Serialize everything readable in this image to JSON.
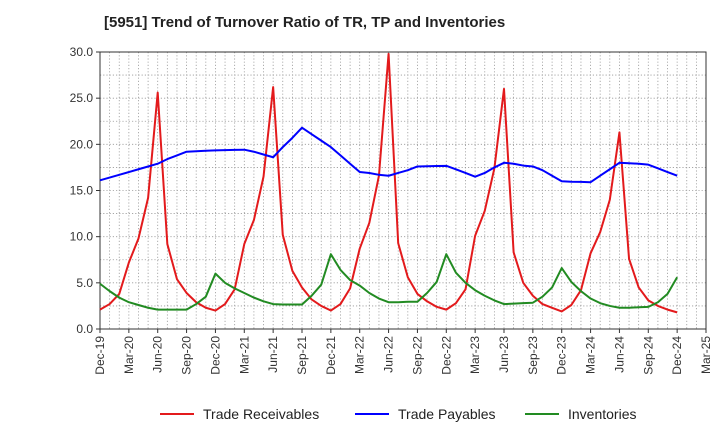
{
  "chart_data": {
    "type": "line",
    "title": "[5951]  Trend of Turnover Ratio of TR, TP and Inventories",
    "xlabel": "",
    "ylabel": "",
    "ylim": [
      0,
      30
    ],
    "yticks": [
      "0.0",
      "5.0",
      "10.0",
      "15.0",
      "20.0",
      "25.0",
      "30.0"
    ],
    "xticks": [
      "Dec-19",
      "Mar-20",
      "Jun-20",
      "Sep-20",
      "Dec-20",
      "Mar-21",
      "Jun-21",
      "Sep-21",
      "Dec-21",
      "Mar-22",
      "Jun-22",
      "Sep-22",
      "Dec-22",
      "Mar-23",
      "Jun-23",
      "Sep-23",
      "Dec-23",
      "Mar-24",
      "Jun-24",
      "Sep-24",
      "Dec-24",
      "Mar-25"
    ],
    "x_start": "Dec-19",
    "grid": true,
    "legend_position": "bottom",
    "series": [
      {
        "name": "Trade Receivables",
        "color": "#e31a1c",
        "values": [
          2.1,
          2.7,
          3.8,
          7.2,
          9.8,
          14.2,
          25.6,
          9.2,
          5.4,
          3.9,
          2.9,
          2.3,
          2.0,
          2.7,
          4.3,
          9.2,
          11.8,
          16.5,
          26.2,
          10.2,
          6.3,
          4.5,
          3.2,
          2.5,
          2.0,
          2.7,
          4.4,
          8.7,
          11.5,
          16.6,
          29.8,
          9.3,
          5.6,
          3.8,
          3.0,
          2.4,
          2.1,
          2.8,
          4.3,
          10.1,
          12.8,
          17.4,
          26.0,
          8.3,
          5.0,
          3.6,
          2.7,
          2.3,
          1.9,
          2.6,
          4.2,
          8.2,
          10.5,
          14.0,
          21.3,
          7.6,
          4.5,
          3.1,
          2.5,
          2.1,
          1.8
        ]
      },
      {
        "name": "Trade Payables",
        "color": "#0000ff",
        "values": [
          16.1,
          16.4,
          16.7,
          17.0,
          17.3,
          17.6,
          17.9,
          18.4,
          18.8,
          19.2,
          19.25,
          19.3,
          19.35,
          19.37,
          19.4,
          19.42,
          19.2,
          18.9,
          18.6,
          19.7,
          20.7,
          21.8,
          21.1,
          20.4,
          19.7,
          18.8,
          17.9,
          17.0,
          16.9,
          16.7,
          16.6,
          16.9,
          17.2,
          17.6,
          17.62,
          17.65,
          17.67,
          17.3,
          16.9,
          16.5,
          16.9,
          17.5,
          18.0,
          17.9,
          17.7,
          17.6,
          17.2,
          16.6,
          16.0,
          15.95,
          15.93,
          15.9,
          16.6,
          17.3,
          18.0,
          17.95,
          17.9,
          17.8,
          17.4,
          17.0,
          16.6
        ]
      },
      {
        "name": "Inventories",
        "color": "#228b22",
        "values": [
          4.9,
          4.1,
          3.4,
          2.9,
          2.6,
          2.3,
          2.1,
          2.1,
          2.1,
          2.1,
          2.7,
          3.5,
          6.0,
          5.0,
          4.4,
          3.9,
          3.4,
          3.0,
          2.7,
          2.65,
          2.65,
          2.65,
          3.6,
          4.8,
          8.1,
          6.4,
          5.3,
          4.7,
          3.9,
          3.3,
          2.9,
          2.9,
          2.95,
          2.95,
          3.9,
          5.1,
          8.1,
          6.1,
          5.0,
          4.2,
          3.6,
          3.1,
          2.7,
          2.75,
          2.8,
          2.85,
          3.5,
          4.5,
          6.6,
          5.1,
          4.1,
          3.3,
          2.8,
          2.5,
          2.3,
          2.3,
          2.35,
          2.4,
          2.9,
          3.8,
          5.6
        ]
      }
    ]
  }
}
